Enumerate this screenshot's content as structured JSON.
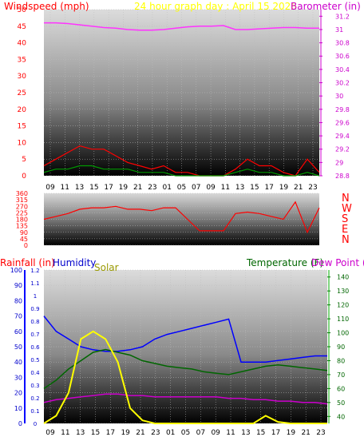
{
  "chart_data": [
    {
      "type": "line",
      "panel": "wind_barometer",
      "title_left": "Windspeed (mph)",
      "title_center": "24 hour graph day : April 15 2026",
      "title_right": "Barometer (in)",
      "x_ticks": [
        "09",
        "11",
        "13",
        "15",
        "17",
        "19",
        "21",
        "23",
        "01",
        "03",
        "05",
        "07",
        "09",
        "11",
        "13",
        "15",
        "17",
        "19",
        "21",
        "23"
      ],
      "x_tick_labels_shown": [
        "09",
        "11",
        "13",
        "15",
        "17",
        "19",
        "21",
        "23",
        "01",
        "05",
        "07",
        "09",
        "11",
        "13",
        "15",
        "17",
        "19",
        "21",
        "23"
      ],
      "x_axis_labels": [
        "09",
        "11",
        "13",
        "15",
        "17",
        "19",
        "21",
        "23",
        "01",
        "05",
        "07",
        "09",
        "11",
        "13",
        "15",
        "17",
        "19",
        "21",
        "23"
      ],
      "bottom_labels": [
        "09",
        "11",
        "13",
        "15",
        "17",
        "19",
        "21",
        "23",
        "01",
        "05",
        "07",
        "09",
        "11",
        "13",
        "15",
        "17",
        "19",
        "21",
        "23"
      ],
      "x_labels_top": [
        "09",
        "11",
        "13",
        "15",
        "17",
        "19",
        "21",
        "23",
        "01",
        "05",
        "09",
        "13",
        "17",
        "21"
      ],
      "left_axis": {
        "label": "Windspeed (mph)",
        "min": 0,
        "max": 50,
        "ticks": [
          0,
          5,
          10,
          15,
          20,
          25,
          30,
          35,
          40,
          45,
          50
        ],
        "color": "#ff0000"
      },
      "right_axis": {
        "label": "Barometer (in)",
        "min": 28.8,
        "max": 31.3,
        "ticks": [
          "28.8",
          "29",
          "29.2",
          "29.4",
          "29.6",
          "29.8",
          "30",
          "30.2",
          "30.4",
          "30.6",
          "30.8",
          "31",
          "31.2"
        ],
        "color": "#cc00cc"
      },
      "series": [
        {
          "name": "Barometer",
          "color": "#ff33ff",
          "values": [
            31.1,
            31.1,
            31.09,
            31.07,
            31.05,
            31.03,
            31.02,
            31.0,
            30.99,
            30.99,
            31.0,
            31.02,
            31.04,
            31.05,
            31.05,
            31.06,
            31.0,
            31.0,
            31.01,
            31.02,
            31.03,
            31.03,
            31.02,
            31.02
          ]
        },
        {
          "name": "Windspeed",
          "color": "#ff0000",
          "values": [
            3,
            5,
            7,
            9,
            8,
            8,
            6,
            4,
            3,
            2,
            3,
            1,
            1,
            0,
            0,
            0,
            2,
            5,
            3,
            3,
            1,
            0,
            5,
            1
          ]
        },
        {
          "name": "Gust",
          "color": "#009900",
          "values": [
            1,
            2,
            2,
            3,
            3,
            2,
            2,
            2,
            1,
            1,
            1,
            0,
            0,
            0,
            0,
            0,
            1,
            2,
            1,
            1,
            0,
            0,
            1,
            0
          ]
        }
      ]
    },
    {
      "type": "line",
      "panel": "wind_direction",
      "y_axis": {
        "min": 0,
        "max": 360,
        "ticks": [
          0,
          45,
          90,
          135,
          180,
          225,
          270,
          315,
          360
        ]
      },
      "right_labels": [
        "N",
        "W",
        "S",
        "E",
        "N"
      ],
      "series": [
        {
          "name": "Wind Direction",
          "color": "#ff0000",
          "values": [
            180,
            200,
            220,
            250,
            260,
            260,
            270,
            250,
            250,
            240,
            260,
            260,
            180,
            100,
            100,
            100,
            220,
            230,
            220,
            200,
            180,
            300,
            90,
            260
          ]
        }
      ]
    },
    {
      "type": "line",
      "panel": "rain_humidity_temp",
      "labels": {
        "rainfall": "Rainfall (in)",
        "humidity": "Humidity",
        "solar": "Solar",
        "temperature": "Temperature (F)",
        "dewpoint": "Dew Point (F)"
      },
      "rain_axis": {
        "min": 0,
        "max": 1.2,
        "ticks": [
          "0",
          "0.1",
          "0.2",
          "0.3",
          "0.4",
          "0.5",
          "0.6",
          "0.7",
          "0.8",
          "0.9",
          "1",
          "1.1",
          "1.2"
        ]
      },
      "humidity_axis": {
        "min": 0,
        "max": 100,
        "ticks": [
          0,
          10,
          20,
          30,
          40,
          50,
          60,
          70,
          80,
          90,
          100
        ]
      },
      "temp_axis": {
        "min": 35,
        "max": 145,
        "ticks": [
          40,
          50,
          60,
          70,
          80,
          90,
          100,
          110,
          120,
          130,
          140
        ]
      },
      "series": [
        {
          "name": "Humidity",
          "color": "#0000ff",
          "values": [
            70,
            60,
            55,
            50,
            48,
            47,
            47,
            48,
            50,
            55,
            58,
            60,
            62,
            64,
            66,
            68,
            40,
            40,
            40,
            41,
            42,
            43,
            44,
            44
          ]
        },
        {
          "name": "Temperature",
          "color": "#006600",
          "values": [
            60,
            66,
            74,
            80,
            86,
            88,
            86,
            84,
            80,
            78,
            76,
            75,
            74,
            72,
            71,
            70,
            72,
            74,
            76,
            77,
            76,
            75,
            74,
            73
          ]
        },
        {
          "name": "Dew Point",
          "color": "#cc00cc",
          "values": [
            50,
            52,
            53,
            54,
            55,
            56,
            56,
            55,
            55,
            54,
            54,
            54,
            54,
            54,
            54,
            53,
            53,
            52,
            52,
            51,
            51,
            50,
            50,
            49
          ]
        },
        {
          "name": "Solar",
          "color": "#ffff00",
          "values": [
            0,
            0.05,
            0.2,
            0.55,
            0.6,
            0.55,
            0.4,
            0.1,
            0.02,
            0,
            0,
            0,
            0,
            0,
            0,
            0,
            0,
            0,
            0.05,
            0.01,
            0,
            0,
            0,
            0
          ]
        }
      ]
    }
  ]
}
